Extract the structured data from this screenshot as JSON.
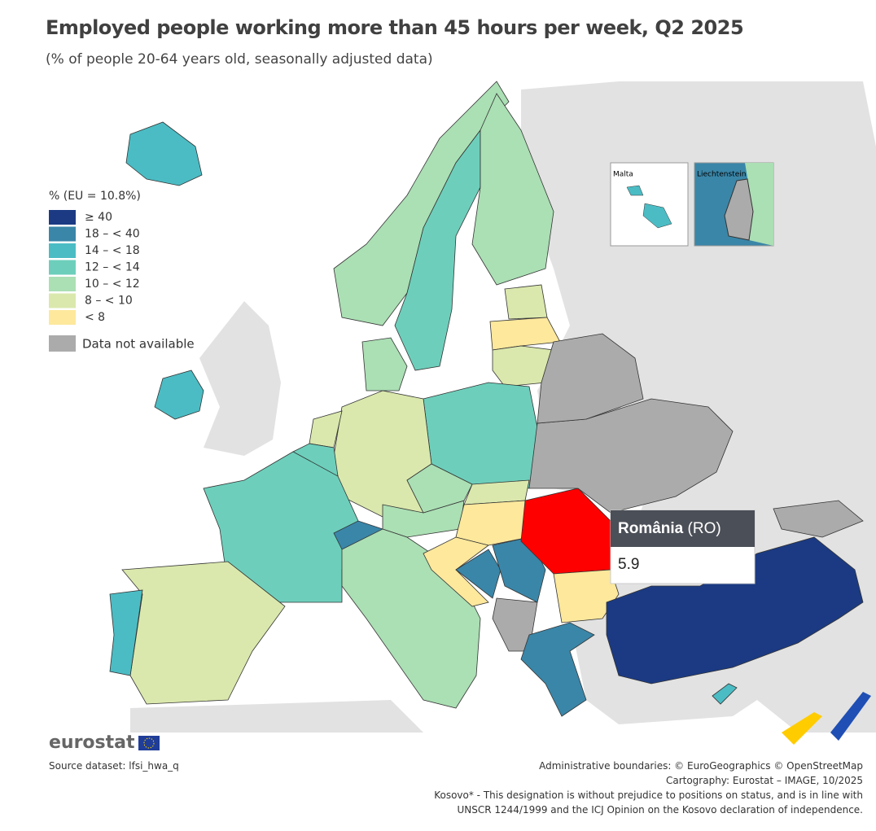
{
  "header": {
    "title": "Employed people working more than 45 hours per week, Q2 2025",
    "subtitle": "(% of people 20-64 years old, seasonally adjusted data)"
  },
  "legend": {
    "title": "% (EU = 10.8%)",
    "items": [
      {
        "label": "≥ 40",
        "color": "#1b3a83"
      },
      {
        "label": "18 – < 40",
        "color": "#3a86a8"
      },
      {
        "label": "14 – < 18",
        "color": "#4bbcc4"
      },
      {
        "label": "12 – < 14",
        "color": "#6dcfbb"
      },
      {
        "label": "10 – < 12",
        "color": "#abdfb4"
      },
      {
        "label": "8 – < 10",
        "color": "#dae8ad"
      },
      {
        "label": "< 8",
        "color": "#fde89c"
      }
    ],
    "na": {
      "label": "Data not available",
      "color": "#ababab"
    }
  },
  "insets": [
    "Malta",
    "Liechtenstein"
  ],
  "tooltip": {
    "country": "România",
    "code": "(RO)",
    "value": 5.9,
    "color": "#ff0000"
  },
  "footer": {
    "logo": "eurostat",
    "source": "Source dataset: lfsi_hwa_q",
    "credits": [
      "Administrative boundaries: © EuroGeographics © OpenStreetMap",
      "Cartography: Eurostat – IMAGE, 10/2025",
      "Kosovo* - This designation is without prejudice to positions on status, and is in line with",
      "UNSCR 1244/1999 and the ICJ Opinion on the Kosovo declaration of independence."
    ]
  }
}
